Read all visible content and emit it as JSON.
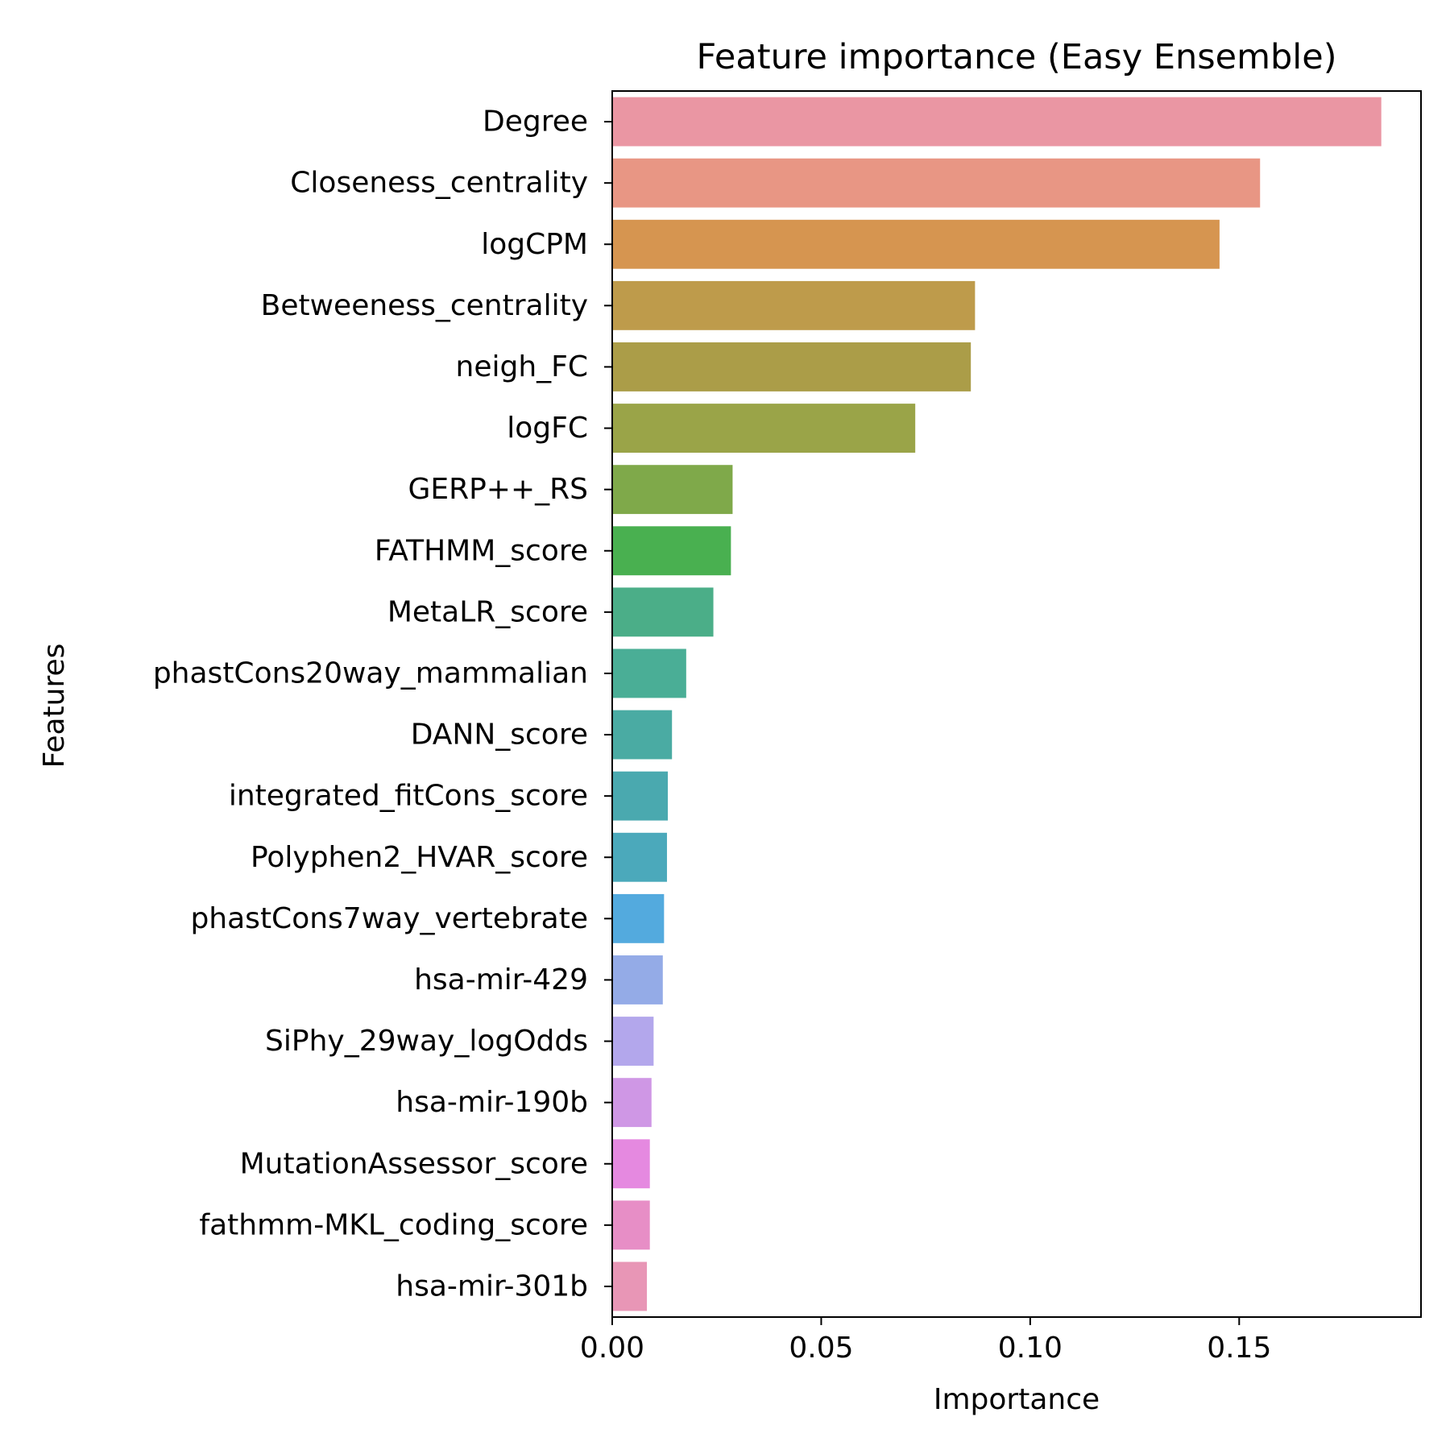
{
  "chart_data": {
    "type": "bar",
    "orientation": "horizontal",
    "title": "Feature importance (Easy Ensemble)",
    "xlabel": "Importance",
    "ylabel": "Features",
    "xlim": [
      0,
      0.1935
    ],
    "xticks": [
      0.0,
      0.05,
      0.1,
      0.15
    ],
    "xtick_labels": [
      "0.00",
      "0.05",
      "0.10",
      "0.15"
    ],
    "grid": false,
    "legend": false,
    "categories": [
      "Degree",
      "Closeness_centrality",
      "logCPM",
      "Betweeness_centrality",
      "neigh_FC",
      "logFC",
      "GERP++_RS",
      "FATHMM_score",
      "MetaLR_score",
      "phastCons20way_mammalian",
      "DANN_score",
      "integrated_fitCons_score",
      "Polyphen2_HVAR_score",
      "phastCons7way_vertebrate",
      "hsa-mir-429",
      "SiPhy_29way_logOdds",
      "hsa-mir-190b",
      "MutationAssessor_score",
      "fathmm-MKL_coding_score",
      "hsa-mir-301b"
    ],
    "values": [
      0.184,
      0.155,
      0.1453,
      0.0868,
      0.0858,
      0.0725,
      0.0288,
      0.0284,
      0.0242,
      0.0177,
      0.0143,
      0.0133,
      0.0131,
      0.0124,
      0.0121,
      0.0099,
      0.0094,
      0.009,
      0.009,
      0.0083
    ],
    "colors": [
      "#ea96a3",
      "#e89684",
      "#d69550",
      "#be9b4b",
      "#ab9d48",
      "#9aa448",
      "#7fa94a",
      "#49b050",
      "#4bae88",
      "#4aae96",
      "#4aaba3",
      "#4aa9af",
      "#4ba9bb",
      "#53aade",
      "#94abe7",
      "#b3a7ec",
      "#cf97e5",
      "#e589e0",
      "#e78ec6",
      "#e896b6"
    ]
  }
}
